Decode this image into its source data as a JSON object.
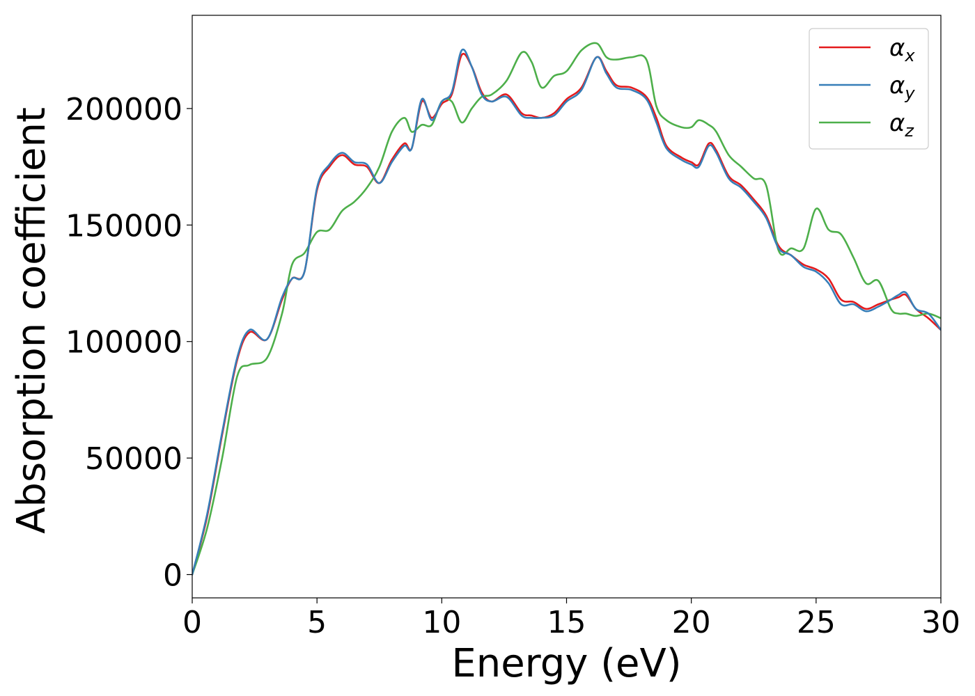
{
  "chart_data": {
    "type": "line",
    "title": "",
    "xlabel": "Energy (eV)",
    "ylabel": "Absorption coefficient",
    "xlim": [
      0,
      30
    ],
    "ylim": [
      -10000,
      240000
    ],
    "xticks": [
      0,
      5,
      10,
      15,
      20,
      25,
      30
    ],
    "yticks": [
      0,
      50000,
      100000,
      150000,
      200000
    ],
    "grid": false,
    "legend_position": "top-right",
    "series": [
      {
        "name": "α",
        "sub": "x",
        "color": "#e41a1c",
        "x": [
          0,
          0.6,
          1.2,
          1.8,
          2.3,
          3.0,
          3.6,
          4.0,
          4.5,
          5.0,
          5.5,
          6.0,
          6.5,
          7.0,
          7.5,
          8.0,
          8.5,
          8.8,
          9.2,
          9.6,
          10.0,
          10.4,
          10.8,
          11.2,
          11.6,
          12.0,
          12.6,
          13.2,
          13.6,
          14.0,
          14.5,
          15.0,
          15.6,
          16.2,
          16.6,
          17.0,
          17.6,
          18.2,
          18.6,
          19.0,
          19.6,
          20.0,
          20.3,
          20.7,
          21.0,
          21.5,
          22.0,
          22.5,
          23.0,
          23.5,
          24.0,
          24.5,
          25.0,
          25.5,
          26.0,
          26.5,
          27.0,
          27.5,
          28.0,
          28.3,
          28.6,
          29.0,
          29.5,
          30.0
        ],
        "y": [
          0,
          25000,
          60000,
          92000,
          104000,
          101000,
          118000,
          127000,
          130000,
          165000,
          175000,
          180000,
          176000,
          175000,
          168000,
          178000,
          185000,
          183000,
          203000,
          196000,
          202000,
          206000,
          223000,
          218000,
          207000,
          203000,
          206000,
          198000,
          197000,
          196000,
          198000,
          204000,
          209000,
          222000,
          216000,
          210000,
          209000,
          205000,
          196000,
          184000,
          179000,
          177000,
          176000,
          185000,
          182000,
          171000,
          167000,
          161000,
          154000,
          141000,
          137000,
          133000,
          131000,
          127000,
          118000,
          117000,
          114000,
          116000,
          118000,
          119000,
          120000,
          114000,
          110000,
          105000
        ]
      },
      {
        "name": "α",
        "sub": "y",
        "color": "#377eb8",
        "x": [
          0,
          0.6,
          1.2,
          1.8,
          2.3,
          3.0,
          3.6,
          4.0,
          4.5,
          5.0,
          5.5,
          6.0,
          6.5,
          7.0,
          7.5,
          8.0,
          8.5,
          8.8,
          9.2,
          9.6,
          10.0,
          10.4,
          10.8,
          11.2,
          11.6,
          12.0,
          12.6,
          13.2,
          13.6,
          14.0,
          14.5,
          15.0,
          15.6,
          16.2,
          16.6,
          17.0,
          17.6,
          18.2,
          18.6,
          19.0,
          19.6,
          20.0,
          20.3,
          20.7,
          21.0,
          21.5,
          22.0,
          22.5,
          23.0,
          23.5,
          24.0,
          24.5,
          25.0,
          25.5,
          26.0,
          26.5,
          27.0,
          27.5,
          28.0,
          28.3,
          28.6,
          29.0,
          29.5,
          30.0
        ],
        "y": [
          0,
          26000,
          61000,
          93000,
          105000,
          101000,
          119000,
          127000,
          130000,
          166000,
          176000,
          181000,
          177000,
          176000,
          168000,
          177000,
          184000,
          183000,
          204000,
          195000,
          203000,
          207000,
          225000,
          218000,
          206000,
          203000,
          205000,
          197000,
          196000,
          196000,
          197000,
          203000,
          208000,
          222000,
          215000,
          209000,
          208000,
          204000,
          194000,
          183000,
          178000,
          176000,
          175000,
          184000,
          181000,
          170000,
          166000,
          160000,
          153000,
          140000,
          137000,
          132000,
          130000,
          125000,
          116000,
          116000,
          113000,
          115000,
          118000,
          120000,
          121000,
          114000,
          112000,
          105000
        ]
      },
      {
        "name": "α",
        "sub": "z",
        "color": "#4daf4a",
        "x": [
          0,
          0.6,
          1.2,
          1.8,
          2.3,
          3.0,
          3.6,
          4.0,
          4.5,
          5.0,
          5.5,
          6.0,
          6.5,
          7.0,
          7.5,
          8.0,
          8.5,
          8.8,
          9.2,
          9.6,
          10.0,
          10.4,
          10.8,
          11.2,
          11.6,
          12.0,
          12.6,
          13.2,
          13.6,
          14.0,
          14.5,
          15.0,
          15.6,
          16.2,
          16.6,
          17.0,
          17.6,
          18.2,
          18.6,
          19.0,
          19.6,
          20.0,
          20.3,
          20.7,
          21.0,
          21.5,
          22.0,
          22.5,
          23.0,
          23.5,
          24.0,
          24.5,
          25.0,
          25.5,
          26.0,
          26.5,
          27.0,
          27.5,
          28.0,
          28.3,
          28.6,
          29.0,
          29.5,
          30.0
        ],
        "y": [
          0,
          20000,
          50000,
          85000,
          90000,
          93000,
          112000,
          133000,
          138000,
          147000,
          148000,
          156000,
          160000,
          166000,
          175000,
          190000,
          196000,
          190000,
          193000,
          193000,
          203000,
          203000,
          194000,
          200000,
          205000,
          206000,
          212000,
          224000,
          220000,
          209000,
          214000,
          216000,
          225000,
          228000,
          222000,
          221000,
          222000,
          221000,
          201000,
          195000,
          192000,
          192000,
          195000,
          193000,
          190000,
          180000,
          175000,
          170000,
          167000,
          139000,
          140000,
          140000,
          157000,
          148000,
          146000,
          136000,
          125000,
          126000,
          114000,
          112000,
          112000,
          111000,
          112000,
          110000
        ]
      }
    ]
  }
}
